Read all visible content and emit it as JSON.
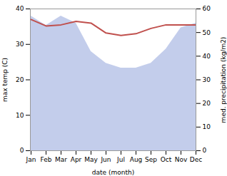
{
  "chart_data": {
    "type": "line",
    "xlabel": "date (month)",
    "ylabel": "max temp (C)",
    "y2label": "med. precipitation (kg/m2)",
    "categories": [
      "Jan",
      "Feb",
      "Mar",
      "Apr",
      "May",
      "Jun",
      "Jul",
      "Aug",
      "Sep",
      "Oct",
      "Nov",
      "Dec"
    ],
    "series": [
      {
        "type": "area",
        "axis": "y2",
        "color": "#b8c4e8",
        "values": [
          57,
          53,
          57,
          54,
          42,
          37,
          35,
          35,
          37,
          43,
          52,
          54
        ]
      },
      {
        "type": "line",
        "color": "#c0504d",
        "values": [
          37.0,
          35.2,
          35.5,
          36.5,
          36.0,
          33.2,
          32.5,
          33.0,
          34.5,
          35.5,
          35.5,
          35.5
        ]
      }
    ],
    "ylim": [
      0,
      40
    ],
    "yticks": [
      0,
      10,
      20,
      30,
      40
    ],
    "y2lim": [
      0,
      60
    ],
    "y2ticks": [
      0,
      10,
      20,
      30,
      40,
      50,
      60
    ],
    "grid": false
  }
}
